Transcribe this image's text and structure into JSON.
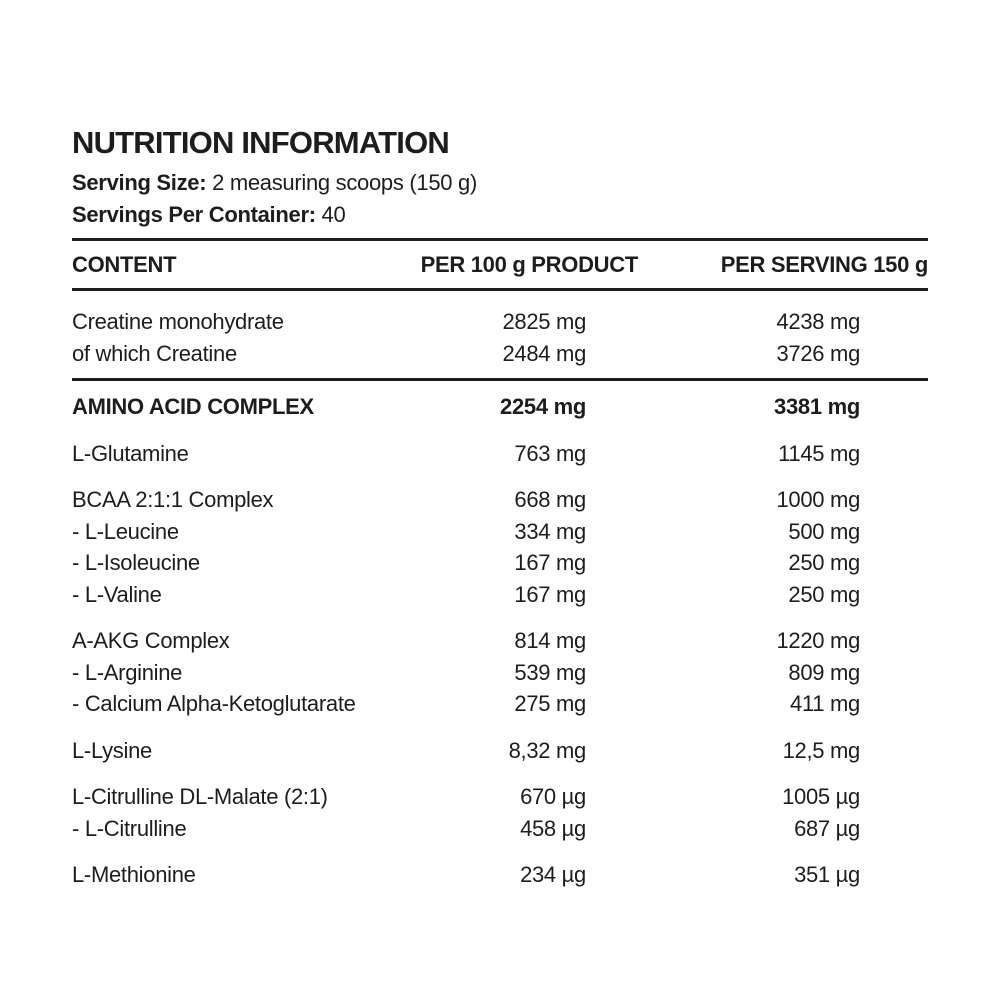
{
  "header": {
    "title": "NUTRITION INFORMATION",
    "serving_size_label": "Serving Size:",
    "serving_size_value": "2 measuring scoops (150 g)",
    "servings_per_container_label": "Servings Per Container:",
    "servings_per_container_value": "40"
  },
  "table": {
    "columns": [
      "CONTENT",
      "PER 100 g PRODUCT",
      "PER SERVING 150 g"
    ],
    "groups": [
      {
        "divider_above": false,
        "rows": [
          {
            "label": "Creatine monohydrate",
            "per_100g": "2825 mg",
            "per_serving": "4238 mg",
            "bold": false
          },
          {
            "label": "of which Creatine",
            "per_100g": "2484 mg",
            "per_serving": "3726 mg",
            "bold": false
          }
        ]
      },
      {
        "divider_above": true,
        "rows": [
          {
            "label": "AMINO ACID COMPLEX",
            "per_100g": "2254 mg",
            "per_serving": "3381 mg",
            "bold": true
          }
        ]
      },
      {
        "divider_above": false,
        "rows": [
          {
            "label": "L-Glutamine",
            "per_100g": "763 mg",
            "per_serving": "1145 mg",
            "bold": false
          }
        ]
      },
      {
        "divider_above": false,
        "rows": [
          {
            "label": "BCAA 2:1:1 Complex",
            "per_100g": "668 mg",
            "per_serving": "1000 mg",
            "bold": false
          },
          {
            "label": "- L-Leucine",
            "per_100g": "334 mg",
            "per_serving": "500 mg",
            "bold": false
          },
          {
            "label": "- L-Isoleucine",
            "per_100g": "167 mg",
            "per_serving": "250 mg",
            "bold": false
          },
          {
            "label": "- L-Valine",
            "per_100g": "167 mg",
            "per_serving": "250 mg",
            "bold": false
          }
        ]
      },
      {
        "divider_above": false,
        "rows": [
          {
            "label": "A-AKG Complex",
            "per_100g": "814 mg",
            "per_serving": "1220 mg",
            "bold": false
          },
          {
            "label": "- L-Arginine",
            "per_100g": "539 mg",
            "per_serving": "809 mg",
            "bold": false
          },
          {
            "label": "- Calcium Alpha-Ketoglutarate",
            "per_100g": "275 mg",
            "per_serving": "411 mg",
            "bold": false
          }
        ]
      },
      {
        "divider_above": false,
        "rows": [
          {
            "label": "L-Lysine",
            "per_100g": "8,32 mg",
            "per_serving": "12,5 mg",
            "bold": false
          }
        ]
      },
      {
        "divider_above": false,
        "rows": [
          {
            "label": "L-Citrulline DL-Malate (2:1)",
            "per_100g": "670 µg",
            "per_serving": "1005 µg",
            "bold": false
          },
          {
            "label": "- L-Citrulline",
            "per_100g": "458 µg",
            "per_serving": "687 µg",
            "bold": false
          }
        ]
      },
      {
        "divider_above": false,
        "rows": [
          {
            "label": "L-Methionine",
            "per_100g": "234 µg",
            "per_serving": "351 µg",
            "bold": false
          }
        ]
      }
    ]
  },
  "colors": {
    "ink": "#1d1d1b",
    "background": "#ffffff"
  }
}
